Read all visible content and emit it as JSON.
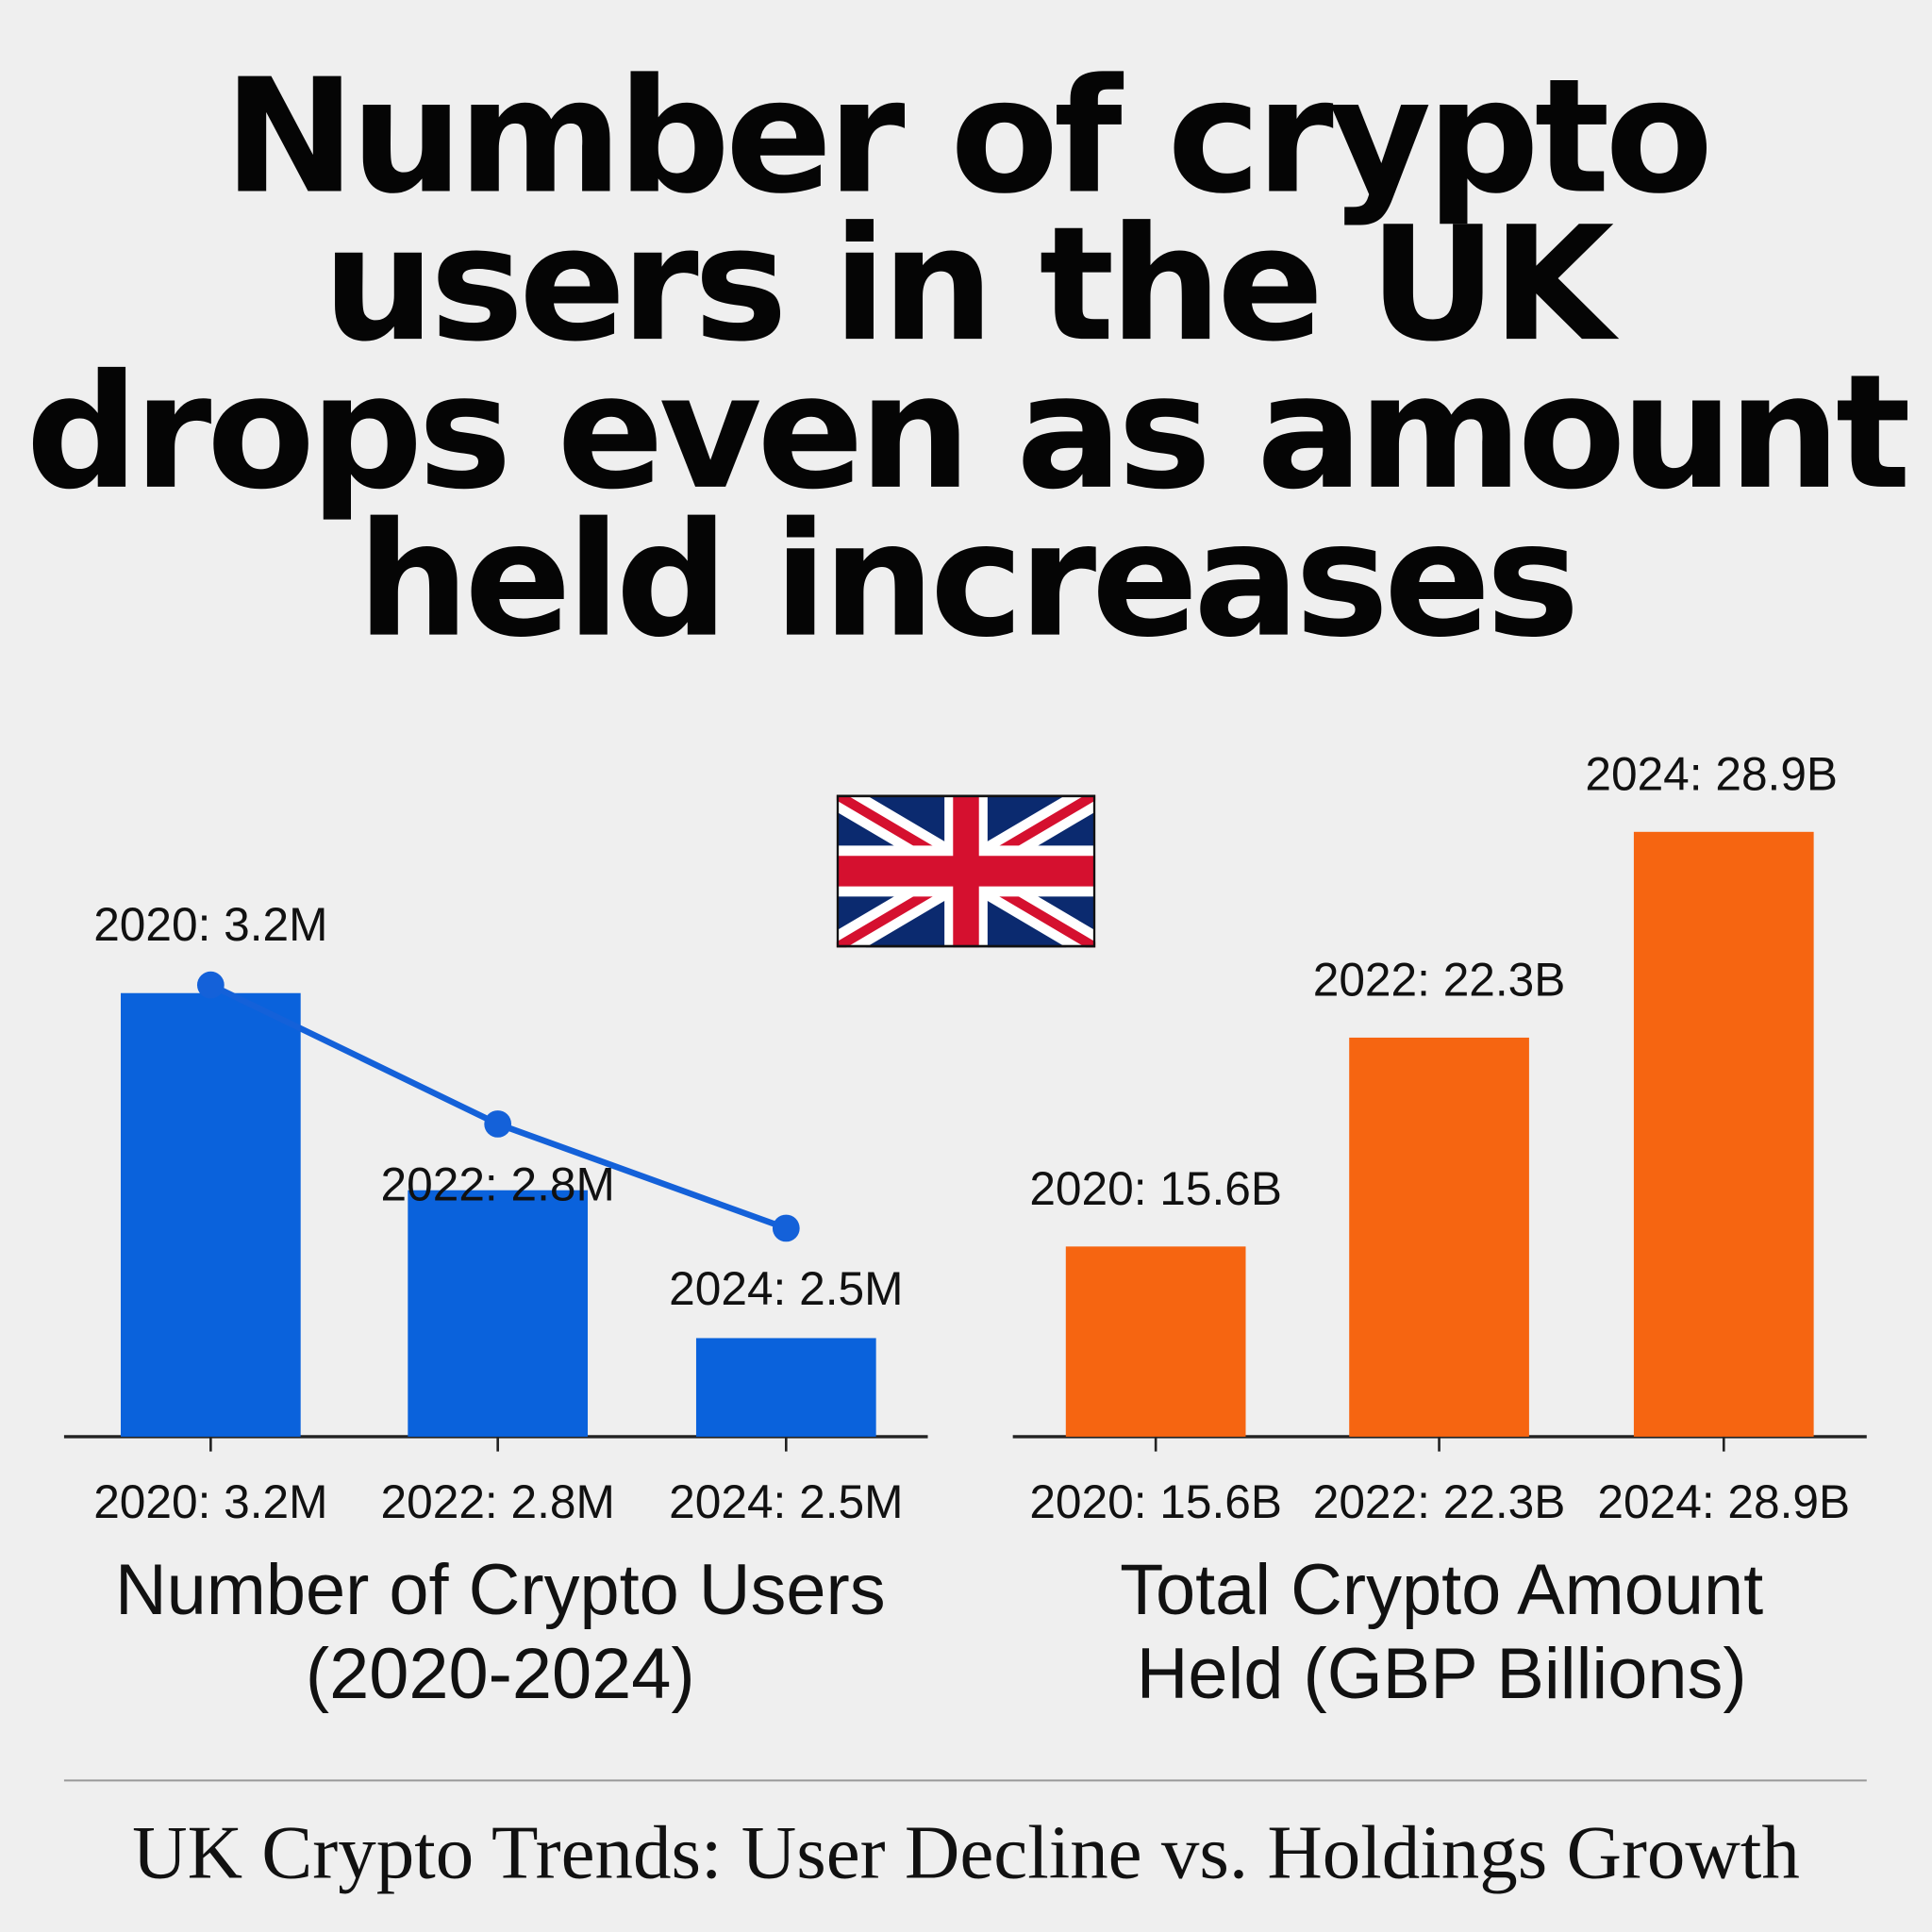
{
  "title_lines": [
    "Number of crypto",
    "users in the UK",
    "drops even as amount",
    "held increases"
  ],
  "footer": "UK Crypto Trends: User Decline vs. Holdings Growth",
  "flag_icon": "uk-flag",
  "chart_data": [
    {
      "type": "bar+line",
      "categories": [
        "2020: 3.2M",
        "2022: 2.8M",
        "2024: 2.5M"
      ],
      "years": [
        2020,
        2022,
        2024
      ],
      "values": [
        3.2,
        2.8,
        2.5
      ],
      "data_labels": [
        "2020: 3.2M",
        "2022: 2.8M",
        "2024: 2.5M"
      ],
      "xlabel_lines": [
        "Number of Crypto Users",
        "(2020-2024)"
      ],
      "unit": "millions of users",
      "bar_color": "#0a62dc",
      "line_color": "#1461d9",
      "grid": false
    },
    {
      "type": "bar",
      "categories": [
        "2020: 15.6B",
        "2022: 22.3B",
        "2024: 28.9B"
      ],
      "years": [
        2020,
        2022,
        2024
      ],
      "values": [
        15.6,
        22.3,
        28.9
      ],
      "data_labels": [
        "2020: 15.6B",
        "2022: 22.3B",
        "2024: 28.9B"
      ],
      "xlabel_lines": [
        "Total Crypto Amount",
        "Held (GBP Billions)"
      ],
      "ylim": [
        9.5,
        31
      ],
      "bar_color": "#f66511",
      "grid": false
    }
  ]
}
